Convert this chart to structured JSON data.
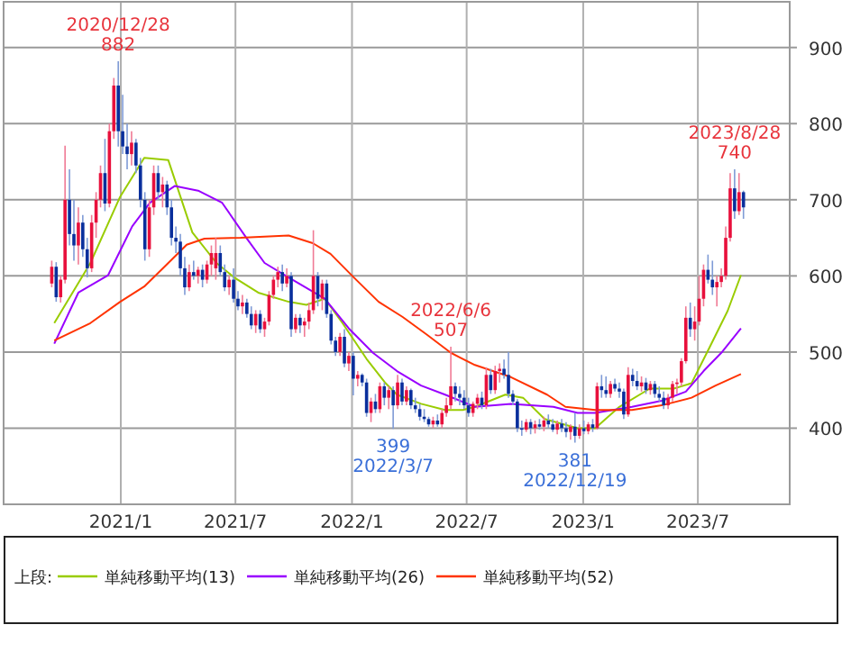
{
  "chart_data": {
    "type": "candlestick",
    "x": [
      "2020-09-14",
      "2020-09-21",
      "2020-09-28",
      "2020-10-05",
      "2020-10-12",
      "2020-10-19",
      "2020-10-26",
      "2020-11-02",
      "2020-11-09",
      "2020-11-16",
      "2020-11-23",
      "2020-11-30",
      "2020-12-07",
      "2020-12-14",
      "2020-12-21",
      "2020-12-28",
      "2021-01-04",
      "2021-01-11",
      "2021-01-18",
      "2021-01-25",
      "2021-02-01",
      "2021-02-08",
      "2021-02-15",
      "2021-02-22",
      "2021-03-01",
      "2021-03-08",
      "2021-03-15",
      "2021-03-22",
      "2021-03-29",
      "2021-04-05",
      "2021-04-12",
      "2021-04-19",
      "2021-04-26",
      "2021-05-03",
      "2021-05-10",
      "2021-05-17",
      "2021-05-24",
      "2021-05-31",
      "2021-06-07",
      "2021-06-14",
      "2021-06-21",
      "2021-06-28",
      "2021-07-05",
      "2021-07-12",
      "2021-07-19",
      "2021-07-26",
      "2021-08-02",
      "2021-08-09",
      "2021-08-16",
      "2021-08-23",
      "2021-08-30",
      "2021-09-06",
      "2021-09-13",
      "2021-09-20",
      "2021-09-27",
      "2021-10-04",
      "2021-10-11",
      "2021-10-18",
      "2021-10-25",
      "2021-11-01",
      "2021-11-08",
      "2021-11-15",
      "2021-11-22",
      "2021-11-29",
      "2021-12-06",
      "2021-12-13",
      "2021-12-20",
      "2021-12-27",
      "2022-01-03",
      "2022-01-10",
      "2022-01-17",
      "2022-01-24",
      "2022-01-31",
      "2022-02-07",
      "2022-02-14",
      "2022-02-21",
      "2022-02-28",
      "2022-03-07",
      "2022-03-14",
      "2022-03-21",
      "2022-03-28",
      "2022-04-04",
      "2022-04-11",
      "2022-04-18",
      "2022-04-25",
      "2022-05-02",
      "2022-05-09",
      "2022-05-16",
      "2022-05-23",
      "2022-05-30",
      "2022-06-06",
      "2022-06-13",
      "2022-06-20",
      "2022-06-27",
      "2022-07-04",
      "2022-07-11",
      "2022-07-18",
      "2022-07-25",
      "2022-08-01",
      "2022-08-08",
      "2022-08-15",
      "2022-08-22",
      "2022-08-29",
      "2022-09-05",
      "2022-09-12",
      "2022-09-19",
      "2022-09-26",
      "2022-10-03",
      "2022-10-10",
      "2022-10-17",
      "2022-10-24",
      "2022-10-31",
      "2022-11-07",
      "2022-11-14",
      "2022-11-21",
      "2022-11-28",
      "2022-12-05",
      "2022-12-12",
      "2022-12-19",
      "2022-12-26",
      "2023-01-02",
      "2023-01-09",
      "2023-01-16",
      "2023-01-23",
      "2023-01-30",
      "2023-02-06",
      "2023-02-13",
      "2023-02-20",
      "2023-02-27",
      "2023-03-06",
      "2023-03-13",
      "2023-03-20",
      "2023-03-27",
      "2023-04-03",
      "2023-04-10",
      "2023-04-17",
      "2023-04-24",
      "2023-05-01",
      "2023-05-08",
      "2023-05-15",
      "2023-05-22",
      "2023-05-29",
      "2023-06-05",
      "2023-06-12",
      "2023-06-19",
      "2023-06-26",
      "2023-07-03",
      "2023-07-10",
      "2023-07-17",
      "2023-07-24",
      "2023-07-31",
      "2023-08-07",
      "2023-08-14",
      "2023-08-21",
      "2023-08-28",
      "2023-09-04",
      "2023-09-11"
    ],
    "ohlc": [
      [
        590,
        620,
        585,
        612
      ],
      [
        612,
        618,
        566,
        572
      ],
      [
        572,
        600,
        565,
        595
      ],
      [
        595,
        771,
        590,
        700
      ],
      [
        700,
        740,
        640,
        655
      ],
      [
        655,
        700,
        620,
        640
      ],
      [
        640,
        690,
        615,
        670
      ],
      [
        670,
        680,
        625,
        635
      ],
      [
        635,
        650,
        598,
        610
      ],
      [
        610,
        680,
        605,
        670
      ],
      [
        670,
        710,
        650,
        700
      ],
      [
        700,
        745,
        690,
        735
      ],
      [
        735,
        780,
        685,
        695
      ],
      [
        695,
        800,
        690,
        790
      ],
      [
        790,
        860,
        780,
        850
      ],
      [
        850,
        882,
        770,
        790
      ],
      [
        790,
        838,
        760,
        770
      ],
      [
        770,
        800,
        740,
        760
      ],
      [
        760,
        790,
        745,
        775
      ],
      [
        775,
        780,
        735,
        745
      ],
      [
        745,
        755,
        690,
        700
      ],
      [
        700,
        710,
        620,
        635
      ],
      [
        635,
        700,
        625,
        690
      ],
      [
        690,
        745,
        680,
        735
      ],
      [
        735,
        745,
        700,
        710
      ],
      [
        710,
        730,
        690,
        720
      ],
      [
        720,
        725,
        680,
        690
      ],
      [
        690,
        700,
        640,
        650
      ],
      [
        650,
        665,
        630,
        645
      ],
      [
        645,
        655,
        600,
        610
      ],
      [
        610,
        625,
        575,
        585
      ],
      [
        585,
        615,
        580,
        605
      ],
      [
        605,
        620,
        595,
        600
      ],
      [
        600,
        612,
        590,
        608
      ],
      [
        608,
        615,
        585,
        595
      ],
      [
        595,
        620,
        590,
        615
      ],
      [
        615,
        640,
        600,
        630
      ],
      [
        610,
        650,
        595,
        630
      ],
      [
        630,
        640,
        600,
        605
      ],
      [
        605,
        615,
        580,
        585
      ],
      [
        585,
        600,
        575,
        595
      ],
      [
        595,
        610,
        565,
        570
      ],
      [
        570,
        580,
        555,
        560
      ],
      [
        560,
        575,
        550,
        565
      ],
      [
        565,
        570,
        545,
        550
      ],
      [
        550,
        560,
        530,
        535
      ],
      [
        535,
        555,
        525,
        550
      ],
      [
        550,
        555,
        525,
        530
      ],
      [
        530,
        545,
        520,
        540
      ],
      [
        540,
        580,
        535,
        575
      ],
      [
        575,
        600,
        570,
        595
      ],
      [
        595,
        612,
        585,
        605
      ],
      [
        605,
        615,
        580,
        590
      ],
      [
        590,
        610,
        585,
        600
      ],
      [
        600,
        605,
        520,
        530
      ],
      [
        530,
        550,
        525,
        545
      ],
      [
        545,
        550,
        525,
        535
      ],
      [
        535,
        545,
        520,
        540
      ],
      [
        540,
        565,
        530,
        555
      ],
      [
        555,
        660,
        550,
        600
      ],
      [
        600,
        605,
        560,
        570
      ],
      [
        570,
        595,
        555,
        590
      ],
      [
        590,
        595,
        545,
        550
      ],
      [
        550,
        555,
        510,
        515
      ],
      [
        515,
        520,
        495,
        500
      ],
      [
        500,
        525,
        495,
        520
      ],
      [
        520,
        530,
        480,
        485
      ],
      [
        485,
        500,
        475,
        495
      ],
      [
        495,
        500,
        443,
        465
      ],
      [
        465,
        475,
        455,
        470
      ],
      [
        470,
        472,
        455,
        460
      ],
      [
        460,
        465,
        415,
        420
      ],
      [
        420,
        440,
        408,
        435
      ],
      [
        435,
        445,
        420,
        425
      ],
      [
        425,
        460,
        420,
        455
      ],
      [
        455,
        460,
        430,
        440
      ],
      [
        440,
        455,
        425,
        450
      ],
      [
        450,
        455,
        399,
        430
      ],
      [
        430,
        470,
        425,
        460
      ],
      [
        460,
        465,
        430,
        435
      ],
      [
        435,
        455,
        430,
        450
      ],
      [
        450,
        452,
        425,
        430
      ],
      [
        430,
        440,
        420,
        425
      ],
      [
        425,
        432,
        410,
        415
      ],
      [
        415,
        425,
        408,
        412
      ],
      [
        412,
        415,
        402,
        405
      ],
      [
        405,
        415,
        400,
        410
      ],
      [
        410,
        418,
        402,
        405
      ],
      [
        405,
        425,
        400,
        420
      ],
      [
        420,
        440,
        415,
        430
      ],
      [
        430,
        507,
        425,
        455
      ],
      [
        455,
        460,
        435,
        445
      ],
      [
        445,
        455,
        430,
        440
      ],
      [
        440,
        450,
        425,
        430
      ],
      [
        430,
        440,
        415,
        420
      ],
      [
        420,
        435,
        415,
        432
      ],
      [
        432,
        445,
        425,
        440
      ],
      [
        440,
        448,
        425,
        430
      ],
      [
        430,
        480,
        425,
        470
      ],
      [
        470,
        478,
        445,
        450
      ],
      [
        450,
        482,
        445,
        475
      ],
      [
        475,
        485,
        460,
        478
      ],
      [
        478,
        490,
        465,
        470
      ],
      [
        470,
        500,
        440,
        445
      ],
      [
        445,
        450,
        430,
        435
      ],
      [
        435,
        438,
        395,
        400
      ],
      [
        400,
        410,
        390,
        398
      ],
      [
        398,
        412,
        395,
        408
      ],
      [
        408,
        412,
        392,
        400
      ],
      [
        400,
        410,
        393,
        405
      ],
      [
        405,
        412,
        398,
        402
      ],
      [
        402,
        415,
        396,
        410
      ],
      [
        410,
        418,
        400,
        405
      ],
      [
        405,
        412,
        395,
        398
      ],
      [
        398,
        410,
        392,
        406
      ],
      [
        406,
        412,
        395,
        400
      ],
      [
        400,
        408,
        388,
        395
      ],
      [
        395,
        405,
        385,
        402
      ],
      [
        402,
        420,
        381,
        390
      ],
      [
        390,
        405,
        386,
        400
      ],
      [
        400,
        410,
        392,
        396
      ],
      [
        396,
        408,
        392,
        405
      ],
      [
        405,
        412,
        395,
        400
      ],
      [
        400,
        460,
        398,
        455
      ],
      [
        455,
        470,
        440,
        450
      ],
      [
        450,
        468,
        440,
        445
      ],
      [
        445,
        462,
        440,
        458
      ],
      [
        458,
        465,
        448,
        452
      ],
      [
        452,
        460,
        440,
        448
      ],
      [
        448,
        452,
        412,
        418
      ],
      [
        418,
        480,
        415,
        470
      ],
      [
        470,
        478,
        455,
        462
      ],
      [
        462,
        475,
        450,
        455
      ],
      [
        455,
        468,
        448,
        460
      ],
      [
        460,
        466,
        445,
        450
      ],
      [
        450,
        462,
        444,
        458
      ],
      [
        458,
        462,
        440,
        445
      ],
      [
        445,
        455,
        435,
        440
      ],
      [
        440,
        448,
        425,
        430
      ],
      [
        430,
        445,
        425,
        440
      ],
      [
        440,
        462,
        435,
        458
      ],
      [
        458,
        465,
        445,
        460
      ],
      [
        460,
        492,
        455,
        488
      ],
      [
        488,
        560,
        485,
        545
      ],
      [
        545,
        565,
        520,
        530
      ],
      [
        530,
        560,
        515,
        540
      ],
      [
        540,
        600,
        535,
        570
      ],
      [
        570,
        615,
        560,
        608
      ],
      [
        608,
        628,
        590,
        595
      ],
      [
        595,
        620,
        575,
        585
      ],
      [
        585,
        600,
        560,
        592
      ],
      [
        592,
        610,
        585,
        600
      ],
      [
        600,
        665,
        595,
        650
      ],
      [
        650,
        735,
        645,
        715
      ],
      [
        715,
        740,
        675,
        685
      ],
      [
        685,
        735,
        680,
        710
      ],
      [
        710,
        712,
        675,
        690
      ]
    ],
    "series": [
      {
        "type": "line",
        "name": "単純移動平均(13)",
        "color": "#99cc00",
        "x": [
          "2020-09-18",
          "2020-11-14",
          "2020-12-31",
          "2021-02-07",
          "2021-03-17",
          "2021-04-24",
          "2021-06-01",
          "2021-06-29",
          "2021-08-06",
          "2021-09-23",
          "2021-10-21",
          "2021-11-19",
          "2021-12-17",
          "2022-01-24",
          "2022-02-22",
          "2022-03-13",
          "2022-04-20",
          "2022-05-28",
          "2022-06-25",
          "2022-07-14",
          "2022-08-31",
          "2022-09-28",
          "2022-11-01",
          "2022-12-23",
          "2023-01-20",
          "2023-02-27",
          "2023-04-16",
          "2023-05-24",
          "2023-06-21",
          "2023-07-20",
          "2023-08-17",
          "2023-09-07"
        ],
        "values": [
          538,
          617,
          704,
          755,
          752,
          657,
          617,
          598,
          578,
          566,
          562,
          570,
          538,
          491,
          460,
          444,
          432,
          424,
          424,
          428,
          444,
          440,
          412,
          400,
          400,
          428,
          452,
          452,
          459,
          507,
          554,
          601
        ]
      },
      {
        "type": "line",
        "name": "単純移動平均(26)",
        "color": "#9900ff",
        "x": [
          "2020-09-18",
          "2020-10-26",
          "2020-12-12",
          "2021-01-19",
          "2021-02-16",
          "2021-03-27",
          "2021-05-03",
          "2021-06-10",
          "2021-07-19",
          "2021-08-16",
          "2021-09-23",
          "2021-11-19",
          "2021-12-27",
          "2022-02-03",
          "2022-03-13",
          "2022-04-20",
          "2022-05-28",
          "2022-07-14",
          "2022-09-09",
          "2022-11-15",
          "2022-12-23",
          "2023-01-20",
          "2023-03-19",
          "2023-05-05",
          "2023-06-12",
          "2023-07-10",
          "2023-08-07",
          "2023-09-07"
        ],
        "values": [
          511,
          578,
          601,
          665,
          696,
          718,
          712,
          696,
          649,
          617,
          598,
          570,
          531,
          499,
          475,
          456,
          444,
          428,
          432,
          428,
          420,
          420,
          428,
          436,
          448,
          475,
          499,
          531
        ]
      },
      {
        "type": "line",
        "name": "単純移動平均(52)",
        "color": "#ff3300",
        "x": [
          "2020-09-18",
          "2020-11-14",
          "2020-12-31",
          "2021-02-07",
          "2021-03-17",
          "2021-04-15",
          "2021-05-13",
          "2021-07-09",
          "2021-09-23",
          "2021-10-31",
          "2021-11-28",
          "2022-01-05",
          "2022-02-12",
          "2022-03-22",
          "2022-04-29",
          "2022-06-06",
          "2022-07-14",
          "2022-09-09",
          "2022-11-05",
          "2022-12-04",
          "2023-01-20",
          "2023-03-19",
          "2023-05-05",
          "2023-06-21",
          "2023-07-29",
          "2023-09-07"
        ],
        "values": [
          515,
          538,
          566,
          586,
          617,
          641,
          649,
          650,
          653,
          643,
          629,
          597,
          566,
          546,
          523,
          499,
          483,
          467,
          444,
          428,
          424,
          424,
          430,
          440,
          456,
          471
        ]
      }
    ],
    "xlim": [
      "2020-06-30",
      "2023-11-23"
    ],
    "xticks": [
      {
        "value": "2021-01-01",
        "label": "2021/1"
      },
      {
        "value": "2021-07-01",
        "label": "2021/7"
      },
      {
        "value": "2022-01-01",
        "label": "2022/1"
      },
      {
        "value": "2022-07-01",
        "label": "2022/7"
      },
      {
        "value": "2023-01-01",
        "label": "2023/1"
      },
      {
        "value": "2023-07-01",
        "label": "2023/7"
      }
    ],
    "ylim": [
      300,
      960
    ],
    "yticks": [
      400,
      500,
      600,
      700,
      800,
      900
    ],
    "grid": true,
    "legend": "bottom",
    "legend_title": "上段:",
    "annotations": [
      {
        "text": "2020/12/28\n882",
        "x": "2020-12-28",
        "y": 882
      },
      {
        "text": "399\n2022/3/7",
        "x": "2022-03-07",
        "y": 399
      },
      {
        "text": "2022/6/6\n507",
        "x": "2022-06-06",
        "y": 507
      },
      {
        "text": "381\n2022/12/19",
        "x": "2022-12-19",
        "y": 381
      },
      {
        "text": "2023/8/28\n740",
        "x": "2023-08-28",
        "y": 740
      }
    ]
  }
}
